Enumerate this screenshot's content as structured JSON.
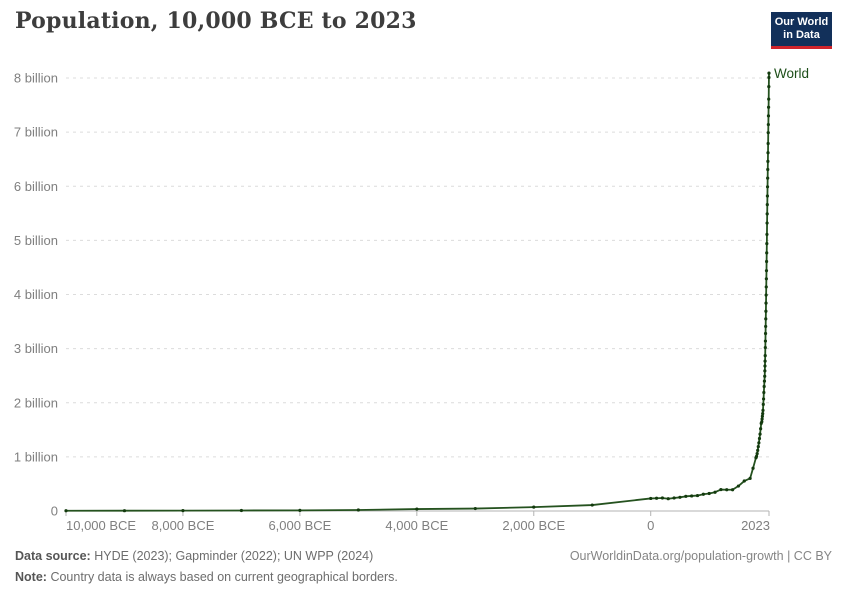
{
  "header": {
    "title": "Population, 10,000 BCE to 2023"
  },
  "logo": {
    "line1": "Our World",
    "line2": "in Data",
    "bg_color": "#12305a",
    "bar_color": "#d0242b"
  },
  "chart_data": {
    "type": "line",
    "title": "Population, 10,000 BCE to 2023",
    "xlabel": "",
    "ylabel": "",
    "xlim": [
      -10000,
      2023
    ],
    "ylim": [
      0,
      8
    ],
    "grid": "dashed-horizontal",
    "legend_position": "end-of-line-label",
    "x_ticks": [
      {
        "v": -10000,
        "label": "10,000 BCE"
      },
      {
        "v": -8000,
        "label": "8,000 BCE"
      },
      {
        "v": -6000,
        "label": "6,000 BCE"
      },
      {
        "v": -4000,
        "label": "4,000 BCE"
      },
      {
        "v": -2000,
        "label": "2,000 BCE"
      },
      {
        "v": 0,
        "label": "0"
      },
      {
        "v": 2023,
        "label": "2023"
      }
    ],
    "y_ticks": [
      {
        "v": 0,
        "label": "0"
      },
      {
        "v": 1,
        "label": "1 billion"
      },
      {
        "v": 2,
        "label": "2 billion"
      },
      {
        "v": 3,
        "label": "3 billion"
      },
      {
        "v": 4,
        "label": "4 billion"
      },
      {
        "v": 5,
        "label": "5 billion"
      },
      {
        "v": 6,
        "label": "6 billion"
      },
      {
        "v": 7,
        "label": "7 billion"
      },
      {
        "v": 8,
        "label": "8 billion"
      }
    ],
    "unit": "billion people",
    "series": [
      {
        "name": "World",
        "line_color": "#25521f",
        "dot_color": "#133a0e",
        "label_color": "#1d4e19",
        "points_year_billion": [
          [
            -10000,
            0.0044
          ],
          [
            -9000,
            0.0057
          ],
          [
            -8000,
            0.0073
          ],
          [
            -7000,
            0.0094
          ],
          [
            -6000,
            0.0121
          ],
          [
            -5000,
            0.019
          ],
          [
            -4000,
            0.036
          ],
          [
            -3000,
            0.045
          ],
          [
            -2000,
            0.072
          ],
          [
            -1000,
            0.11
          ],
          [
            0,
            0.232
          ],
          [
            100,
            0.236
          ],
          [
            200,
            0.24
          ],
          [
            300,
            0.227
          ],
          [
            400,
            0.241
          ],
          [
            500,
            0.253
          ],
          [
            600,
            0.271
          ],
          [
            700,
            0.278
          ],
          [
            800,
            0.285
          ],
          [
            900,
            0.309
          ],
          [
            1000,
            0.323
          ],
          [
            1100,
            0.347
          ],
          [
            1200,
            0.396
          ],
          [
            1300,
            0.392
          ],
          [
            1400,
            0.392
          ],
          [
            1500,
            0.461
          ],
          [
            1600,
            0.554
          ],
          [
            1700,
            0.603
          ],
          [
            1750,
            0.79
          ],
          [
            1800,
            0.985
          ],
          [
            1810,
            1.01
          ],
          [
            1820,
            1.06
          ],
          [
            1830,
            1.12
          ],
          [
            1840,
            1.19
          ],
          [
            1850,
            1.26
          ],
          [
            1860,
            1.34
          ],
          [
            1870,
            1.42
          ],
          [
            1880,
            1.52
          ],
          [
            1890,
            1.62
          ],
          [
            1900,
            1.65
          ],
          [
            1905,
            1.7
          ],
          [
            1910,
            1.75
          ],
          [
            1915,
            1.8
          ],
          [
            1920,
            1.86
          ],
          [
            1925,
            1.97
          ],
          [
            1930,
            2.07
          ],
          [
            1935,
            2.19
          ],
          [
            1940,
            2.3
          ],
          [
            1945,
            2.4
          ],
          [
            1950,
            2.49
          ],
          [
            1952,
            2.59
          ],
          [
            1954,
            2.68
          ],
          [
            1956,
            2.77
          ],
          [
            1958,
            2.87
          ],
          [
            1960,
            3.02
          ],
          [
            1962,
            3.14
          ],
          [
            1964,
            3.28
          ],
          [
            1966,
            3.41
          ],
          [
            1968,
            3.55
          ],
          [
            1970,
            3.69
          ],
          [
            1972,
            3.84
          ],
          [
            1974,
            3.99
          ],
          [
            1976,
            4.14
          ],
          [
            1978,
            4.29
          ],
          [
            1980,
            4.44
          ],
          [
            1982,
            4.61
          ],
          [
            1984,
            4.77
          ],
          [
            1986,
            4.94
          ],
          [
            1988,
            5.11
          ],
          [
            1990,
            5.32
          ],
          [
            1992,
            5.49
          ],
          [
            1994,
            5.66
          ],
          [
            1996,
            5.82
          ],
          [
            1998,
            5.99
          ],
          [
            2000,
            6.15
          ],
          [
            2002,
            6.31
          ],
          [
            2004,
            6.46
          ],
          [
            2006,
            6.62
          ],
          [
            2008,
            6.79
          ],
          [
            2010,
            6.99
          ],
          [
            2012,
            7.14
          ],
          [
            2014,
            7.3
          ],
          [
            2016,
            7.46
          ],
          [
            2018,
            7.61
          ],
          [
            2020,
            7.84
          ],
          [
            2022,
            8.01
          ],
          [
            2023,
            8.09
          ]
        ]
      }
    ],
    "colors": {
      "gridline": "#dcdcdc",
      "axis": "#b3b3b3",
      "tick_label": "#7f7f7f"
    }
  },
  "footer": {
    "source_label": "Data source:",
    "source_text": "HYDE (2023); Gapminder (2022); UN WPP (2024)",
    "note_label": "Note:",
    "note_text": "Country data is always based on current geographical borders.",
    "url_text": "OurWorldinData.org/population-growth",
    "license_text": " | CC BY"
  }
}
